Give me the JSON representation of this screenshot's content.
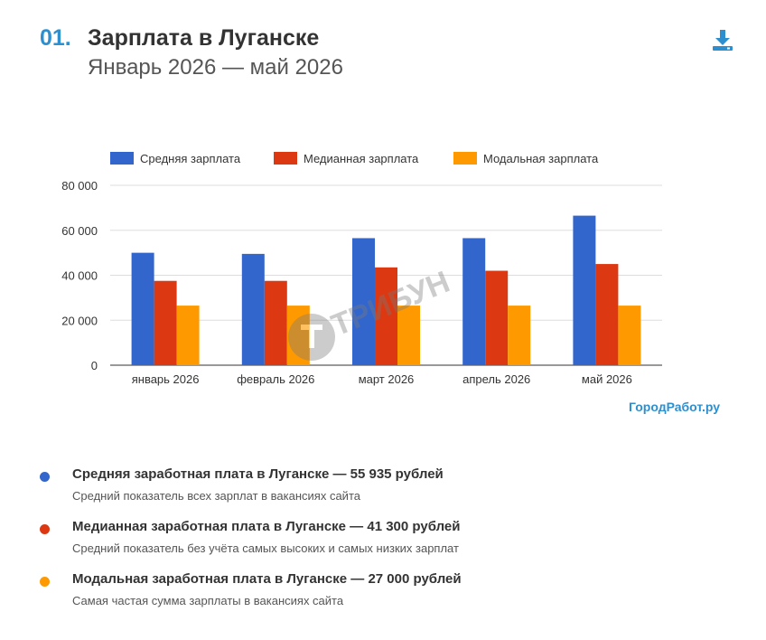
{
  "header": {
    "number": "01.",
    "title": "Зарплата в Луганске",
    "subtitle": "Январь 2026 — май 2026"
  },
  "watermark": "ТРИБУН",
  "brand": "ГородРабот.ру",
  "colors": {
    "avg": "#3366cc",
    "median": "#dc3912",
    "mode": "#ff9900",
    "accent": "#2e8fcf"
  },
  "chart_data": {
    "type": "bar",
    "categories": [
      "январь 2026",
      "февраль 2026",
      "март 2026",
      "апрель 2026",
      "май 2026"
    ],
    "series": [
      {
        "name": "Средняя зарплата",
        "color": "#3366cc",
        "values": [
          50000,
          49500,
          56500,
          56500,
          66500
        ]
      },
      {
        "name": "Медианная зарплата",
        "color": "#dc3912",
        "values": [
          37500,
          37500,
          43500,
          42000,
          45000
        ]
      },
      {
        "name": "Модальная зарплата",
        "color": "#ff9900",
        "values": [
          26500,
          26500,
          26500,
          26500,
          26500
        ]
      }
    ],
    "ylim": [
      0,
      80000
    ],
    "yticks": [
      0,
      20000,
      40000,
      60000,
      80000
    ],
    "ytick_labels": [
      "0",
      "20 000",
      "40 000",
      "60 000",
      "80 000"
    ],
    "legend_position": "top",
    "grid": true
  },
  "stats": [
    {
      "color": "#3366cc",
      "title": "Средняя заработная плата в Луганске — 55 935 рублей",
      "desc": "Средний показатель всех зарплат в вакансиях сайта"
    },
    {
      "color": "#dc3912",
      "title": "Медианная заработная плата в Луганске — 41 300 рублей",
      "desc": "Средний показатель без учёта самых высоких и самых низких зарплат"
    },
    {
      "color": "#ff9900",
      "title": "Модальная заработная плата в Луганске — 27 000 рублей",
      "desc": "Самая частая сумма зарплаты в вакансиях сайта"
    }
  ]
}
